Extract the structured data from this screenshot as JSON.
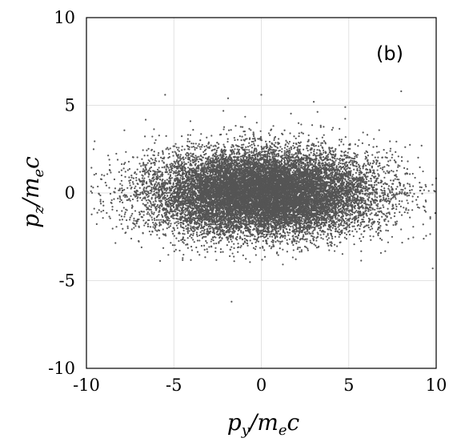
{
  "chart_data": {
    "type": "scatter",
    "panel_label": "(b)",
    "xlabel": {
      "base": "p",
      "sub": "y",
      "mid": "/m",
      "sub2": "e",
      "tail": "c"
    },
    "ylabel": {
      "base": "p",
      "sub": "z",
      "mid": "/m",
      "sub2": "e",
      "tail": "c"
    },
    "xlim": [
      -10,
      10
    ],
    "ylim": [
      -10,
      10
    ],
    "x_ticks": [
      -10,
      -5,
      0,
      5,
      10
    ],
    "y_ticks": [
      -10,
      -5,
      0,
      5,
      10
    ],
    "x_tick_labels": [
      "-10",
      "-5",
      "0",
      "5",
      "10"
    ],
    "y_tick_labels": [
      "-10",
      "-5",
      "0",
      "5",
      "10"
    ],
    "grid": true,
    "marker_color": "#555555",
    "distribution": {
      "kind": "gaussian-cloud",
      "count": 16000,
      "x_mean": 0,
      "x_std": 3.2,
      "y_mean": 0,
      "y_std": 1.2
    },
    "outliers": [
      {
        "x": -5.5,
        "y": 5.6
      },
      {
        "x": 0,
        "y": 5.6
      },
      {
        "x": 8.0,
        "y": 5.8
      },
      {
        "x": -1.7,
        "y": -6.2
      },
      {
        "x": 3.0,
        "y": 5.2
      },
      {
        "x": 4.8,
        "y": 4.9
      },
      {
        "x": -1.9,
        "y": 5.4
      },
      {
        "x": 9.8,
        "y": -4.3
      }
    ]
  }
}
